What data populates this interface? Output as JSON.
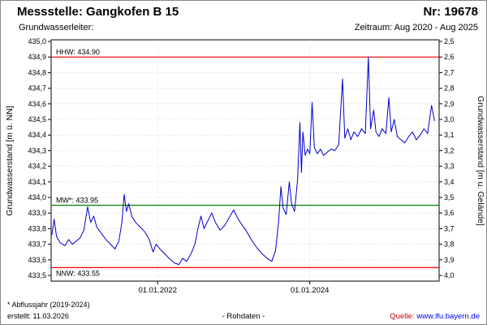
{
  "header": {
    "title": "Messstelle: Gangkofen B 15",
    "number": "Nr: 19678",
    "aquifer_label": "Grundwasserleiter:",
    "period": "Zeitraum: Aug 2020 - Aug 2025"
  },
  "footer": {
    "note": "* Abflussjahr (2019-2024)",
    "created": "erstellt: 11.03.2026",
    "center": "- Rohdaten -",
    "source_label": "Quelle:",
    "source_link": "www.lfu.bayern.de"
  },
  "colors": {
    "source_label": "#c00000",
    "source_link": "#0000ee",
    "series": "#0000cc",
    "grid": "#c8c8c8",
    "frame": "#000000"
  },
  "chart_data": {
    "type": "line",
    "title": "",
    "ylabel_left": "Grundwasserstand [m ü. NN]",
    "ylabel_right": "Grundwasserstand [m u. Gelände]",
    "ylim_left": [
      433.5,
      435.0
    ],
    "ylim_right": [
      4.0,
      2.5
    ],
    "xlim": [
      2020.6,
      2025.7
    ],
    "grid": true,
    "grid_color": "#c8c8c8",
    "legend": "none",
    "xticks": [
      {
        "value": 2022.0,
        "label": "01.01.2022"
      },
      {
        "value": 2024.0,
        "label": "01.01.2024"
      }
    ],
    "yticks_left": [
      {
        "value": 435.0,
        "label": "435,0"
      },
      {
        "value": 434.9,
        "label": "434,9"
      },
      {
        "value": 434.8,
        "label": "434,8"
      },
      {
        "value": 434.7,
        "label": "434,7"
      },
      {
        "value": 434.6,
        "label": "434,6"
      },
      {
        "value": 434.5,
        "label": "434,5"
      },
      {
        "value": 434.4,
        "label": "434,4"
      },
      {
        "value": 434.3,
        "label": "434,3"
      },
      {
        "value": 434.2,
        "label": "434,2"
      },
      {
        "value": 434.1,
        "label": "434,1"
      },
      {
        "value": 434.0,
        "label": "434,0"
      },
      {
        "value": 433.9,
        "label": "433,9"
      },
      {
        "value": 433.8,
        "label": "433,8"
      },
      {
        "value": 433.7,
        "label": "433,7"
      },
      {
        "value": 433.6,
        "label": "433,6"
      },
      {
        "value": 433.5,
        "label": "433,5"
      }
    ],
    "yticks_right": [
      {
        "value": 2.5,
        "label": "2,5"
      },
      {
        "value": 2.6,
        "label": "2,6"
      },
      {
        "value": 2.7,
        "label": "2,7"
      },
      {
        "value": 2.8,
        "label": "2,8"
      },
      {
        "value": 2.9,
        "label": "2,9"
      },
      {
        "value": 3.0,
        "label": "3,0"
      },
      {
        "value": 3.1,
        "label": "3,1"
      },
      {
        "value": 3.2,
        "label": "3,2"
      },
      {
        "value": 3.3,
        "label": "3,3"
      },
      {
        "value": 3.4,
        "label": "3,4"
      },
      {
        "value": 3.5,
        "label": "3,5"
      },
      {
        "value": 3.6,
        "label": "3,6"
      },
      {
        "value": 3.7,
        "label": "3,7"
      },
      {
        "value": 3.8,
        "label": "3,8"
      },
      {
        "value": 3.9,
        "label": "3,9"
      },
      {
        "value": 4.0,
        "label": "4,0"
      }
    ],
    "reference_lines": [
      {
        "name": "hhw",
        "label": "HHW: 434.90",
        "value": 434.9,
        "color": "#ff0000",
        "label_side": "above"
      },
      {
        "name": "mw",
        "label": "MW*: 433.95",
        "value": 433.95,
        "color": "#008000",
        "label_side": "above"
      },
      {
        "name": "nnw",
        "label": "NNW: 433.55",
        "value": 433.55,
        "color": "#ff0000",
        "label_side": "below"
      }
    ],
    "series": [
      {
        "name": "rohdaten",
        "label": "Rohdaten",
        "color": "#0000cc",
        "points": [
          [
            2020.61,
            433.76
          ],
          [
            2020.64,
            433.86
          ],
          [
            2020.67,
            433.75
          ],
          [
            2020.72,
            433.71
          ],
          [
            2020.78,
            433.69
          ],
          [
            2020.83,
            433.73
          ],
          [
            2020.88,
            433.7
          ],
          [
            2020.93,
            433.72
          ],
          [
            2020.98,
            433.74
          ],
          [
            2021.03,
            433.79
          ],
          [
            2021.08,
            433.94
          ],
          [
            2021.12,
            433.84
          ],
          [
            2021.16,
            433.88
          ],
          [
            2021.2,
            433.81
          ],
          [
            2021.26,
            433.77
          ],
          [
            2021.32,
            433.73
          ],
          [
            2021.38,
            433.7
          ],
          [
            2021.44,
            433.67
          ],
          [
            2021.49,
            433.72
          ],
          [
            2021.53,
            433.84
          ],
          [
            2021.56,
            434.02
          ],
          [
            2021.59,
            433.91
          ],
          [
            2021.62,
            433.96
          ],
          [
            2021.66,
            433.88
          ],
          [
            2021.71,
            433.84
          ],
          [
            2021.77,
            433.81
          ],
          [
            2021.83,
            433.78
          ],
          [
            2021.89,
            433.73
          ],
          [
            2021.94,
            433.65
          ],
          [
            2021.98,
            433.7
          ],
          [
            2022.03,
            433.67
          ],
          [
            2022.09,
            433.64
          ],
          [
            2022.15,
            433.61
          ],
          [
            2022.22,
            433.58
          ],
          [
            2022.28,
            433.57
          ],
          [
            2022.33,
            433.61
          ],
          [
            2022.38,
            433.59
          ],
          [
            2022.44,
            433.64
          ],
          [
            2022.49,
            433.7
          ],
          [
            2022.53,
            433.8
          ],
          [
            2022.57,
            433.88
          ],
          [
            2022.61,
            433.8
          ],
          [
            2022.66,
            433.85
          ],
          [
            2022.71,
            433.9
          ],
          [
            2022.76,
            433.84
          ],
          [
            2022.82,
            433.79
          ],
          [
            2022.88,
            433.82
          ],
          [
            2022.94,
            433.87
          ],
          [
            2023.0,
            433.92
          ],
          [
            2023.05,
            433.87
          ],
          [
            2023.1,
            433.83
          ],
          [
            2023.16,
            433.79
          ],
          [
            2023.23,
            433.73
          ],
          [
            2023.3,
            433.68
          ],
          [
            2023.37,
            433.64
          ],
          [
            2023.44,
            433.61
          ],
          [
            2023.5,
            433.59
          ],
          [
            2023.55,
            433.66
          ],
          [
            2023.59,
            433.84
          ],
          [
            2023.62,
            434.07
          ],
          [
            2023.65,
            433.93
          ],
          [
            2023.69,
            433.89
          ],
          [
            2023.73,
            434.1
          ],
          [
            2023.76,
            433.96
          ],
          [
            2023.8,
            433.91
          ],
          [
            2023.84,
            434.12
          ],
          [
            2023.87,
            434.48
          ],
          [
            2023.89,
            434.16
          ],
          [
            2023.91,
            434.42
          ],
          [
            2023.94,
            434.27
          ],
          [
            2023.97,
            434.31
          ],
          [
            2024.0,
            434.28
          ],
          [
            2024.03,
            434.61
          ],
          [
            2024.06,
            434.32
          ],
          [
            2024.1,
            434.28
          ],
          [
            2024.14,
            434.31
          ],
          [
            2024.18,
            434.27
          ],
          [
            2024.23,
            434.29
          ],
          [
            2024.28,
            434.31
          ],
          [
            2024.33,
            434.3
          ],
          [
            2024.38,
            434.34
          ],
          [
            2024.43,
            434.76
          ],
          [
            2024.46,
            434.38
          ],
          [
            2024.5,
            434.44
          ],
          [
            2024.54,
            434.37
          ],
          [
            2024.58,
            434.42
          ],
          [
            2024.63,
            434.39
          ],
          [
            2024.68,
            434.44
          ],
          [
            2024.73,
            434.41
          ],
          [
            2024.77,
            434.9
          ],
          [
            2024.8,
            434.44
          ],
          [
            2024.84,
            434.56
          ],
          [
            2024.87,
            434.42
          ],
          [
            2024.91,
            434.39
          ],
          [
            2024.95,
            434.44
          ],
          [
            2025.0,
            434.41
          ],
          [
            2025.04,
            434.64
          ],
          [
            2025.07,
            434.42
          ],
          [
            2025.11,
            434.5
          ],
          [
            2025.15,
            434.39
          ],
          [
            2025.2,
            434.37
          ],
          [
            2025.25,
            434.35
          ],
          [
            2025.3,
            434.39
          ],
          [
            2025.35,
            434.42
          ],
          [
            2025.4,
            434.37
          ],
          [
            2025.45,
            434.4
          ],
          [
            2025.5,
            434.44
          ],
          [
            2025.55,
            434.41
          ],
          [
            2025.6,
            434.59
          ],
          [
            2025.64,
            434.49
          ]
        ]
      }
    ]
  }
}
